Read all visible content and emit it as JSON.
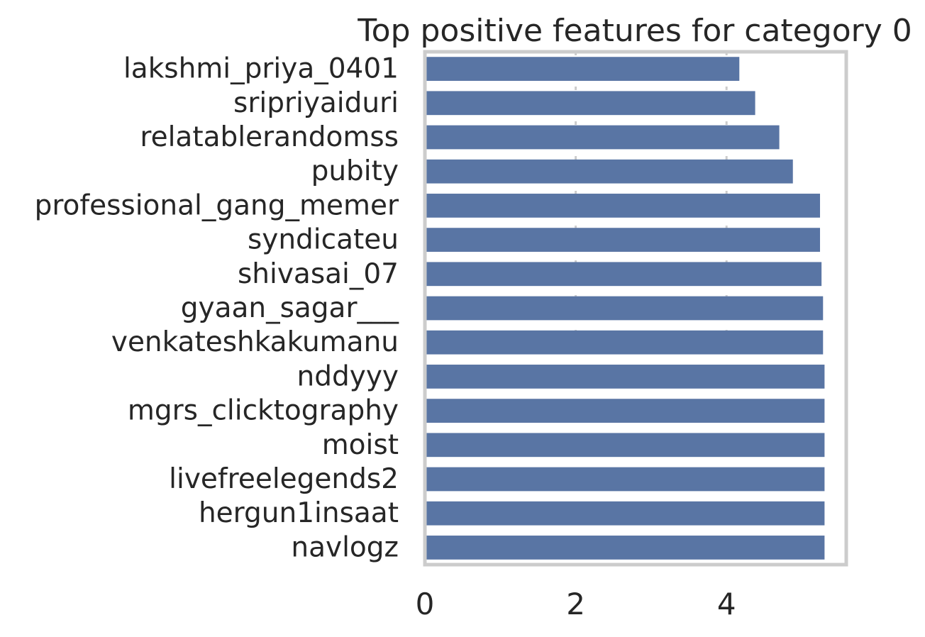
{
  "chart_data": {
    "type": "bar",
    "orientation": "horizontal",
    "title": "Top positive features for category 0",
    "xlabel": "",
    "ylabel": "",
    "xlim": [
      0,
      5.6
    ],
    "xticks": [
      "0",
      "2",
      "4"
    ],
    "grid": "vertical dotted",
    "categories": [
      "lakshmi_priya_0401",
      "sripriyaiduri",
      "relatablerandomss",
      "pubity",
      "professional_gang_memer",
      "syndicateu",
      "shivasai_07",
      "gyaan_sagar___",
      "venkateshkakumanu",
      "nddyyy",
      "mgrs_clicktography",
      "moist",
      "livefreelegends2",
      "hergun1insaat",
      "navlogz"
    ],
    "values": [
      4.17,
      4.38,
      4.7,
      4.88,
      5.24,
      5.24,
      5.26,
      5.28,
      5.28,
      5.3,
      5.3,
      5.3,
      5.3,
      5.3,
      5.3
    ],
    "bar_color": "#5975a4",
    "frame_color": "#cccccc"
  }
}
